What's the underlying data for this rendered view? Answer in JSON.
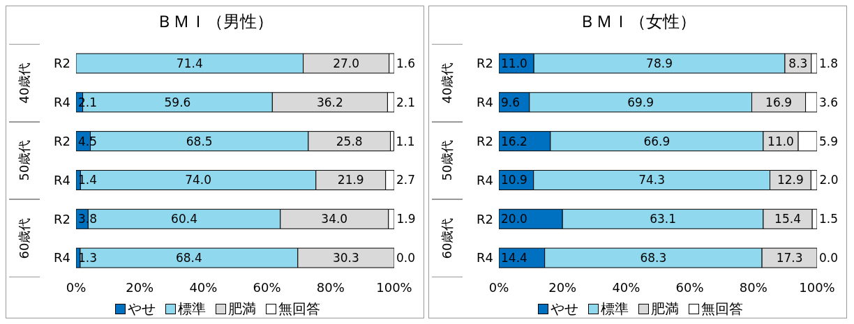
{
  "chart_data": [
    {
      "type": "bar",
      "orientation": "horizontal",
      "stacked": true,
      "title": "ＢＭＩ（男性）",
      "categories": [
        "R2",
        "R4",
        "R2",
        "R4",
        "R2",
        "R4"
      ],
      "annotations": [
        "40歳代",
        "50歳代",
        "60歳代"
      ],
      "xlim": [
        0,
        100
      ],
      "xticks": [
        {
          "value": 0,
          "label": "0%"
        },
        {
          "value": 20,
          "label": "20%"
        },
        {
          "value": 40,
          "label": "40%"
        },
        {
          "value": 60,
          "label": "60%"
        },
        {
          "value": 80,
          "label": "80%"
        },
        {
          "value": 100,
          "label": "100%"
        }
      ],
      "legend": "bottom",
      "series": [
        {
          "name": "やせ",
          "color": "#0070c0",
          "values": [
            0,
            2.1,
            4.5,
            1.4,
            3.8,
            1.3
          ],
          "value_labels": [
            null,
            "2.1",
            "4.5",
            "1.4",
            "3.8",
            "1.3"
          ]
        },
        {
          "name": "標準",
          "color": "#8fd8ee",
          "values": [
            71.4,
            59.6,
            68.5,
            74.0,
            60.4,
            68.4
          ],
          "value_labels": [
            "71.4",
            "59.6",
            "68.5",
            "74.0",
            "60.4",
            "68.4"
          ]
        },
        {
          "name": "肥満",
          "color": "#d9d9d9",
          "values": [
            27.0,
            36.2,
            25.8,
            21.9,
            34.0,
            30.3
          ],
          "value_labels": [
            "27.0",
            "36.2",
            "25.8",
            "21.9",
            "34.0",
            "30.3"
          ]
        },
        {
          "name": "無回答",
          "color": "#ffffff",
          "values": [
            1.6,
            2.1,
            1.1,
            2.7,
            1.9,
            0.0
          ],
          "value_labels": [
            "1.6",
            "2.1",
            "1.1",
            "2.7",
            "1.9",
            "0.0"
          ]
        }
      ]
    },
    {
      "type": "bar",
      "orientation": "horizontal",
      "stacked": true,
      "title": "ＢＭＩ（女性）",
      "categories": [
        "R2",
        "R4",
        "R2",
        "R4",
        "R2",
        "R4"
      ],
      "annotations": [
        "40歳代",
        "50歳代",
        "60歳代"
      ],
      "xlim": [
        0,
        100
      ],
      "xticks": [
        {
          "value": 0,
          "label": "0%"
        },
        {
          "value": 20,
          "label": "20%"
        },
        {
          "value": 40,
          "label": "40%"
        },
        {
          "value": 60,
          "label": "60%"
        },
        {
          "value": 80,
          "label": "80%"
        },
        {
          "value": 100,
          "label": "100%"
        }
      ],
      "legend": "bottom",
      "series": [
        {
          "name": "やせ",
          "color": "#0070c0",
          "values": [
            11.0,
            9.6,
            16.2,
            10.9,
            20.0,
            14.4
          ],
          "value_labels": [
            "11.0",
            "9.6",
            "16.2",
            "10.9",
            "20.0",
            "14.4"
          ]
        },
        {
          "name": "標準",
          "color": "#8fd8ee",
          "values": [
            78.9,
            69.9,
            66.9,
            74.3,
            63.1,
            68.3
          ],
          "value_labels": [
            "78.9",
            "69.9",
            "66.9",
            "74.3",
            "63.1",
            "68.3"
          ]
        },
        {
          "name": "肥満",
          "color": "#d9d9d9",
          "values": [
            8.3,
            16.9,
            11.0,
            12.9,
            15.4,
            17.3
          ],
          "value_labels": [
            "8.3",
            "16.9",
            "11.0",
            "12.9",
            "15.4",
            "17.3"
          ]
        },
        {
          "name": "無回答",
          "color": "#ffffff",
          "values": [
            1.8,
            3.6,
            5.9,
            2.0,
            1.5,
            0.0
          ],
          "value_labels": [
            "1.8",
            "3.6",
            "5.9",
            "2.0",
            "1.5",
            "0.0"
          ]
        }
      ]
    }
  ]
}
